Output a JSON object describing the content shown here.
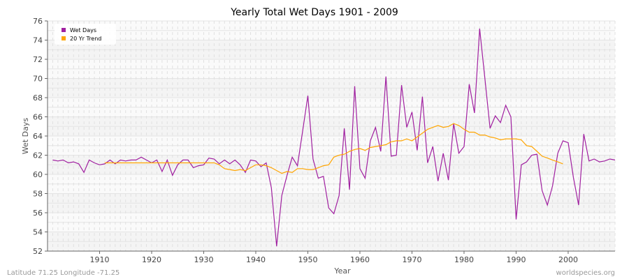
{
  "chart_data": {
    "type": "line",
    "title": "Yearly Total Wet Days 1901 - 2009",
    "xlabel": "Year",
    "ylabel": "Wet Days",
    "xlim": [
      1900,
      2009
    ],
    "ylim": [
      52,
      76
    ],
    "x_ticks": [
      1910,
      1920,
      1930,
      1940,
      1950,
      1960,
      1970,
      1980,
      1990,
      2000
    ],
    "y_ticks": [
      52,
      54,
      56,
      58,
      60,
      62,
      64,
      66,
      68,
      70,
      72,
      74,
      76
    ],
    "grid": true,
    "legend_position": "top-left",
    "series": [
      {
        "name": "Wet Days",
        "color": "#a020a0",
        "start_year": 1901,
        "values": [
          61.5,
          61.4,
          61.5,
          61.2,
          61.3,
          61.1,
          60.2,
          61.5,
          61.2,
          61.0,
          61.1,
          61.5,
          61.1,
          61.5,
          61.4,
          61.5,
          61.5,
          61.8,
          61.5,
          61.2,
          61.5,
          60.3,
          61.5,
          59.9,
          61.0,
          61.5,
          61.5,
          60.7,
          60.9,
          61.0,
          61.7,
          61.6,
          61.1,
          61.5,
          61.1,
          61.5,
          61.0,
          60.2,
          61.5,
          61.4,
          60.8,
          61.2,
          58.6,
          52.5,
          57.8,
          59.9,
          61.8,
          60.9,
          64.5,
          68.2,
          61.6,
          59.6,
          59.8,
          56.5,
          55.9,
          57.8,
          64.8,
          58.4,
          69.2,
          60.6,
          59.6,
          63.5,
          64.9,
          62.4,
          70.2,
          61.9,
          62.0,
          69.3,
          64.9,
          66.5,
          62.5,
          68.1,
          61.2,
          62.9,
          59.3,
          62.2,
          59.4,
          65.3,
          62.2,
          62.9,
          69.4,
          66.4,
          75.2,
          70.0,
          64.8,
          66.1,
          65.4,
          67.2,
          66.0,
          55.3,
          61.0,
          61.3,
          62.0,
          62.1,
          58.3,
          56.8,
          58.8,
          62.2,
          63.5,
          63.3,
          59.7,
          56.8,
          64.2,
          61.4,
          61.6,
          61.3,
          61.4,
          61.6,
          61.5
        ]
      },
      {
        "name": "20 Yr Trend",
        "color": "#ffa500",
        "start_year": 1911,
        "values": [
          61.2,
          61.2,
          61.2,
          61.2,
          61.2,
          61.2,
          61.2,
          61.2,
          61.2,
          61.2,
          61.2,
          61.2,
          61.2,
          61.2,
          61.2,
          61.2,
          61.2,
          61.2,
          61.2,
          61.2,
          61.2,
          61.2,
          61.0,
          60.6,
          60.5,
          60.4,
          60.5,
          60.4,
          60.7,
          61.0,
          61.0,
          60.9,
          60.7,
          60.4,
          60.1,
          60.3,
          60.2,
          60.6,
          60.6,
          60.5,
          60.5,
          60.7,
          60.9,
          61.0,
          61.8,
          62.0,
          62.1,
          62.4,
          62.6,
          62.7,
          62.5,
          62.8,
          62.9,
          63.0,
          63.1,
          63.4,
          63.5,
          63.5,
          63.7,
          63.5,
          63.9,
          64.3,
          64.7,
          64.9,
          65.1,
          64.9,
          65.0,
          65.3,
          65.1,
          64.7,
          64.4,
          64.4,
          64.1,
          64.1,
          63.9,
          63.8,
          63.6,
          63.7,
          63.7,
          63.7,
          63.6,
          63.0,
          62.9,
          62.4,
          61.9,
          61.7,
          61.5,
          61.3,
          61.1
        ]
      }
    ]
  },
  "footer": {
    "location": "Latitude 71.25 Longitude -71.25",
    "source": "worldspecies.org"
  }
}
